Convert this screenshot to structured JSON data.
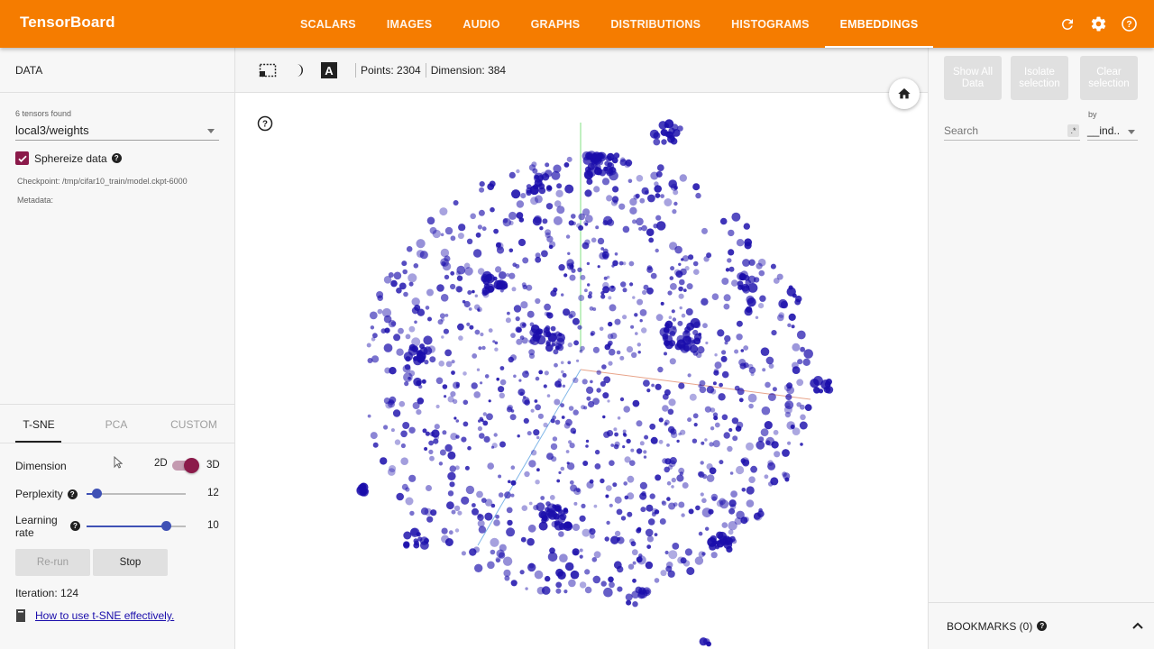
{
  "app": {
    "title": "TensorBoard"
  },
  "nav": {
    "tabs": [
      {
        "label": "SCALARS",
        "active": false
      },
      {
        "label": "IMAGES",
        "active": false
      },
      {
        "label": "AUDIO",
        "active": false
      },
      {
        "label": "GRAPHS",
        "active": false
      },
      {
        "label": "DISTRIBUTIONS",
        "active": false
      },
      {
        "label": "HISTOGRAMS",
        "active": false
      },
      {
        "label": "EMBEDDINGS",
        "active": true
      }
    ],
    "actions": [
      "refresh-icon",
      "settings-icon",
      "help-icon"
    ]
  },
  "left": {
    "header": "DATA",
    "tensors_found": "6 tensors found",
    "tensor_selected": "local3/weights",
    "sphereize_label": "Sphereize data",
    "sphereize_checked": true,
    "checkpoint": "Checkpoint: /tmp/cifar10_train/model.ckpt-6000",
    "metadata": "Metadata:"
  },
  "projection": {
    "tabs": [
      "T-SNE",
      "PCA",
      "CUSTOM"
    ],
    "active_tab": "T-SNE",
    "dimension_label": "Dimension",
    "dim_2d": "2D",
    "dim_3d": "3D",
    "dimension_3d_on": true,
    "perplexity_label": "Perplexity",
    "perplexity_value": "12",
    "perplexity_fraction": 0.1,
    "learning_rate_label": "Learning rate",
    "learning_rate_value": "10",
    "learning_rate_fraction": 0.8,
    "rerun_label": "Re-run",
    "stop_label": "Stop",
    "iteration": "Iteration: 124",
    "tsne_link": "How to use t-SNE effectively."
  },
  "viewer": {
    "points_label": "Points: 2304",
    "dimension_label": "Dimension: 384",
    "point_color": "#1a0dab"
  },
  "inspector": {
    "show_all": "Show All Data",
    "isolate": "Isolate selection",
    "clear": "Clear selection",
    "search_placeholder": "Search",
    "regex_label": ".*",
    "by_label": "by",
    "by_value": "__ind..",
    "bookmarks": "BOOKMARKS (0)"
  },
  "colors": {
    "accent": "#f57c00",
    "check": "#8b1a4a",
    "slider": "#3f51b5"
  }
}
